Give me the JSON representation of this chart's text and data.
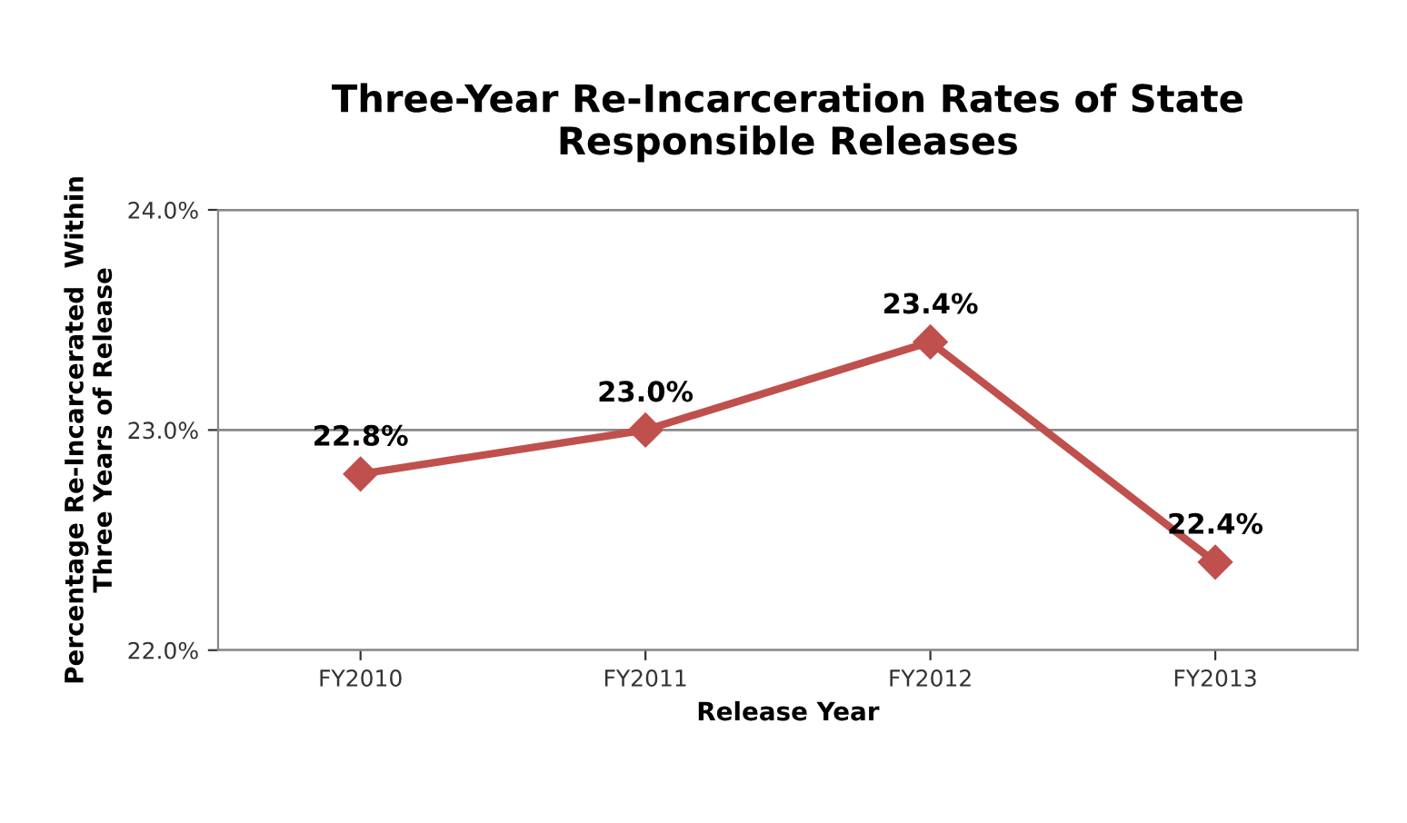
{
  "chart_data": {
    "type": "line",
    "title": "Three-Year Re-Incarceration Rates of State\nResponsible Releases",
    "xlabel": "Release Year",
    "ylabel": "Percentage Re-Incarcerated  Within\nThree Years of Release",
    "categories": [
      "FY2010",
      "FY2011",
      "FY2012",
      "FY2013"
    ],
    "series": [
      {
        "color": "#c0504d",
        "values": [
          22.8,
          23.0,
          23.4,
          22.4
        ],
        "value_labels": [
          "22.8%",
          "23.0%",
          "23.4%",
          "22.4%"
        ]
      }
    ],
    "ylim": [
      22.0,
      24.0
    ],
    "yticks": [
      {
        "value": 22.0,
        "label": "22.0%"
      },
      {
        "value": 23.0,
        "label": "23.0%"
      },
      {
        "value": 24.0,
        "label": "24.0%"
      }
    ],
    "grid": "y",
    "marker": "diamond",
    "line_style": "solid",
    "legend": false
  }
}
